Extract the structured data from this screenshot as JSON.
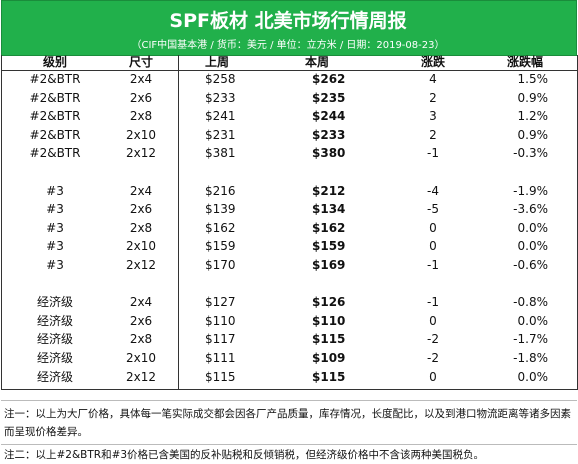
{
  "header": {
    "title": "SPF板材 北美市场行情周报",
    "subtitle": "（CIF中国基本港 / 货币：美元 / 单位：立方米 / 日期：2019-08-23）"
  },
  "table": {
    "columns": [
      "级别",
      "尺寸",
      "上周",
      "本周",
      "涨跌",
      "涨跌幅"
    ],
    "groups": [
      {
        "rows": [
          [
            "#2&BTR",
            "2x4",
            "$258",
            "$262",
            "4",
            "1.5%"
          ],
          [
            "#2&BTR",
            "2x6",
            "$233",
            "$235",
            "2",
            "0.9%"
          ],
          [
            "#2&BTR",
            "2x8",
            "$241",
            "$244",
            "3",
            "1.2%"
          ],
          [
            "#2&BTR",
            "2x10",
            "$231",
            "$233",
            "2",
            "0.9%"
          ],
          [
            "#2&BTR",
            "2x12",
            "$381",
            "$380",
            "-1",
            "-0.3%"
          ]
        ]
      },
      {
        "rows": [
          [
            "#3",
            "2x4",
            "$216",
            "$212",
            "-4",
            "-1.9%"
          ],
          [
            "#3",
            "2x6",
            "$139",
            "$134",
            "-5",
            "-3.6%"
          ],
          [
            "#3",
            "2x8",
            "$162",
            "$162",
            "0",
            "0.0%"
          ],
          [
            "#3",
            "2x10",
            "$159",
            "$159",
            "0",
            "0.0%"
          ],
          [
            "#3",
            "2x12",
            "$170",
            "$169",
            "-1",
            "-0.6%"
          ]
        ]
      },
      {
        "rows": [
          [
            "经济级",
            "2x4",
            "$127",
            "$126",
            "-1",
            "-0.8%"
          ],
          [
            "经济级",
            "2x6",
            "$110",
            "$110",
            "0",
            "0.0%"
          ],
          [
            "经济级",
            "2x8",
            "$117",
            "$115",
            "-2",
            "-1.7%"
          ],
          [
            "经济级",
            "2x10",
            "$111",
            "$109",
            "-2",
            "-1.8%"
          ],
          [
            "经济级",
            "2x12",
            "$115",
            "$115",
            "0",
            "0.0%"
          ]
        ]
      }
    ]
  },
  "notes": [
    "注一：以上为大厂价格，具体每一笔实际成交都会因各厂产品质量，库存情况，长度配比，以及到港口物流距离等诸多因素而呈现价格差异。",
    "注二：以上#2&BTR和#3价格已含美国的反补贴税和反倾销税，但经济级价格中不含该两种美国税负。"
  ]
}
